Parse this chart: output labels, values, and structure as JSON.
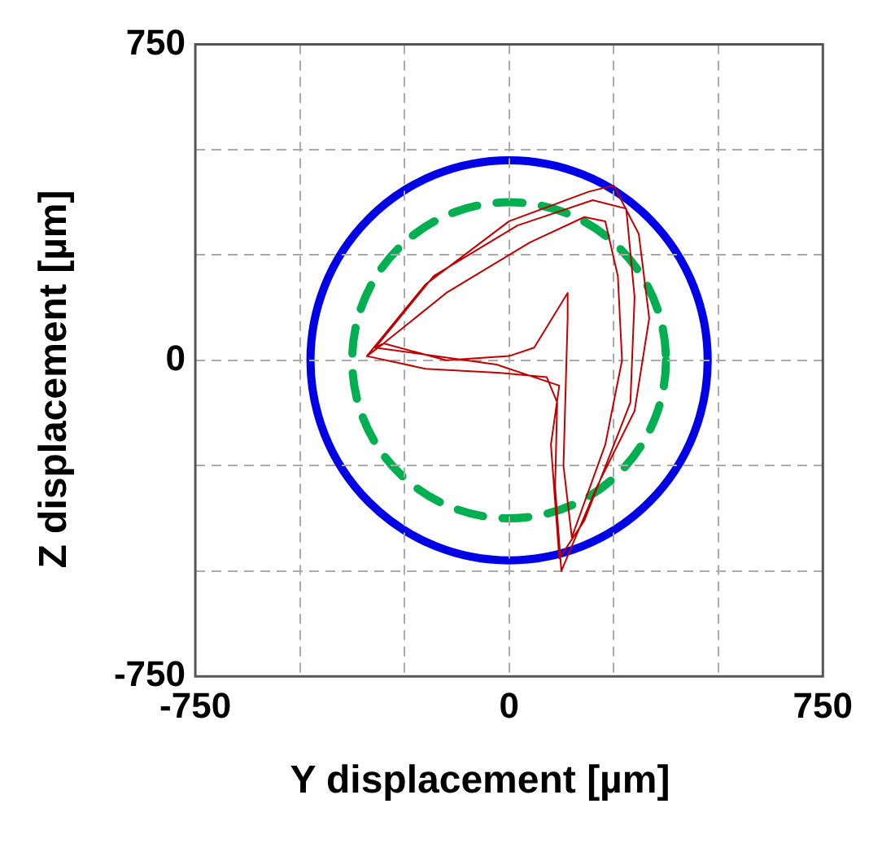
{
  "chart_data": {
    "type": "line",
    "xlabel": "Y displacement [µm]",
    "ylabel": "Z displacement [µm]",
    "xlim": [
      -750,
      750
    ],
    "ylim": [
      -750,
      750
    ],
    "xticks": [
      -750,
      {
        "value": -500,
        "label": null
      },
      {
        "value": -250,
        "label": null
      },
      0,
      {
        "value": 250,
        "label": null
      },
      {
        "value": 500,
        "label": null
      },
      750
    ],
    "yticks": [
      -750,
      {
        "value": -500,
        "label": null
      },
      {
        "value": -250,
        "label": null
      },
      0,
      {
        "value": 250,
        "label": null
      },
      {
        "value": 500,
        "label": null
      },
      750
    ],
    "grid": true,
    "legend": false,
    "marker": "none",
    "series": [
      {
        "color": "#c00000",
        "line_style": "solid",
        "x": [
          -340,
          -200,
          0,
          190,
          250,
          310,
          335,
          300,
          210,
          125,
          110,
          115,
          90,
          -20,
          -200,
          -340,
          -300,
          -150,
          50,
          180,
          230,
          260,
          270,
          230,
          150,
          130,
          140,
          140,
          60,
          0,
          -150,
          -300,
          -320,
          -180,
          20,
          200,
          280,
          300,
          290,
          180,
          120,
          100,
          120,
          -30,
          -320
        ],
        "values": [
          10,
          180,
          330,
          400,
          415,
          300,
          100,
          -120,
          -300,
          -500,
          -300,
          -100,
          -40,
          -30,
          -20,
          10,
          40,
          160,
          280,
          340,
          330,
          200,
          0,
          -200,
          -420,
          -250,
          100,
          160,
          30,
          10,
          0,
          40,
          30,
          200,
          320,
          380,
          360,
          150,
          -100,
          -380,
          -470,
          -200,
          -60,
          -10,
          30
        ]
      }
    ]
  }
}
